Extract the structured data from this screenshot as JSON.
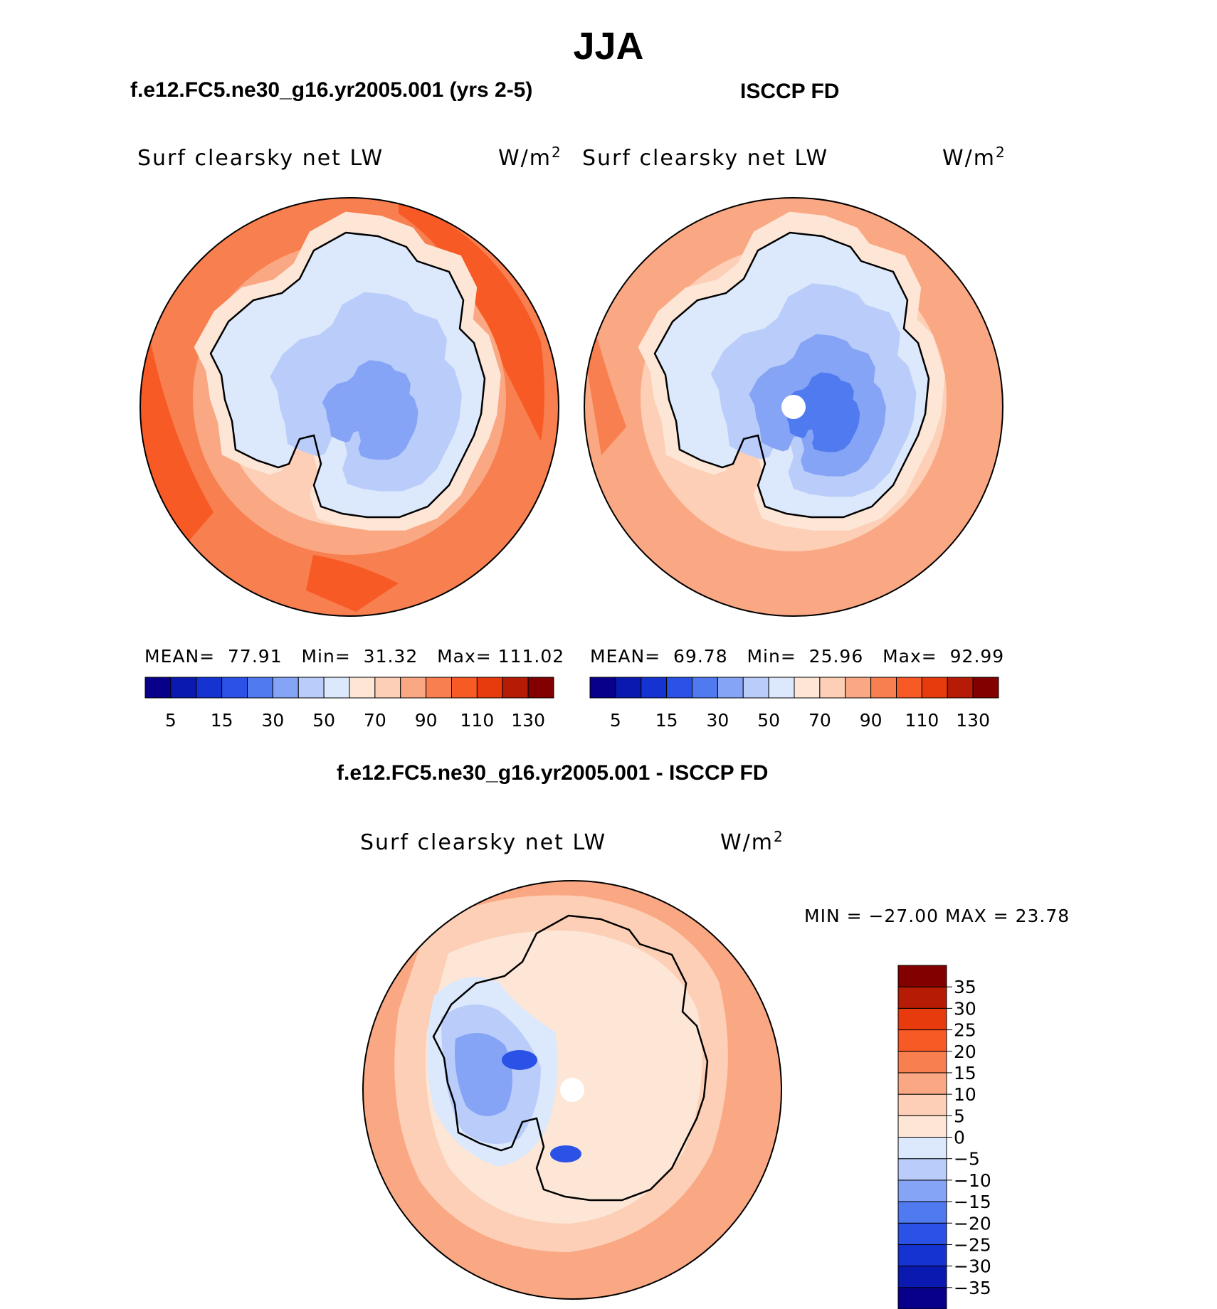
{
  "figure": {
    "season": "JJA",
    "left_title": "f.e12.FC5.ne30_g16.yr2005.001 (yrs 2-5)",
    "right_title": "ISCCP FD",
    "diff_title": "f.e12.FC5.ne30_g16.yr2005.001 - ISCCP FD"
  },
  "panels": {
    "model": {
      "label": "Surf clearsky net LW",
      "unit_base": "W/m",
      "unit_exp": "2",
      "mean_label": "MEAN=",
      "mean": "77.91",
      "min_label": "Min=",
      "min": "31.32",
      "max_label": "Max=",
      "max": "111.02"
    },
    "obs": {
      "label": "Surf clearsky net LW",
      "unit_base": "W/m",
      "unit_exp": "2",
      "mean_label": "MEAN=",
      "mean": "69.78",
      "min_label": "Min=",
      "min": "25.96",
      "max_label": "Max=",
      "max": "92.99"
    },
    "diff": {
      "label": "Surf clearsky net LW",
      "unit_base": "W/m",
      "unit_exp": "2",
      "minmax_text": "MIN = −27.00 MAX =  23.78"
    }
  },
  "colorbars": {
    "abs": {
      "colors": [
        "#08008a",
        "#0a1ab0",
        "#1533d0",
        "#2a52e6",
        "#4f7af0",
        "#86a4f5",
        "#b9ccfa",
        "#dce8fb",
        "#fde6d6",
        "#fccfb6",
        "#faa883",
        "#f87f4f",
        "#f85a26",
        "#e73a0d",
        "#b51b05",
        "#830000"
      ],
      "tick_labels": [
        "5",
        "15",
        "30",
        "50",
        "70",
        "90",
        "110",
        "130"
      ]
    },
    "diff": {
      "colors": [
        "#08008a",
        "#0a1ab0",
        "#1533d0",
        "#2a52e6",
        "#4f7af0",
        "#86a4f5",
        "#b9ccfa",
        "#dce8fb",
        "#fde6d6",
        "#fccfb6",
        "#faa883",
        "#f87f4f",
        "#f85a26",
        "#e73a0d",
        "#b51b05",
        "#830000"
      ],
      "tick_labels": [
        "−35",
        "−30",
        "−25",
        "−20",
        "−15",
        "−10",
        "−5",
        "0",
        "5",
        "10",
        "15",
        "20",
        "25",
        "30",
        "35"
      ]
    }
  }
}
